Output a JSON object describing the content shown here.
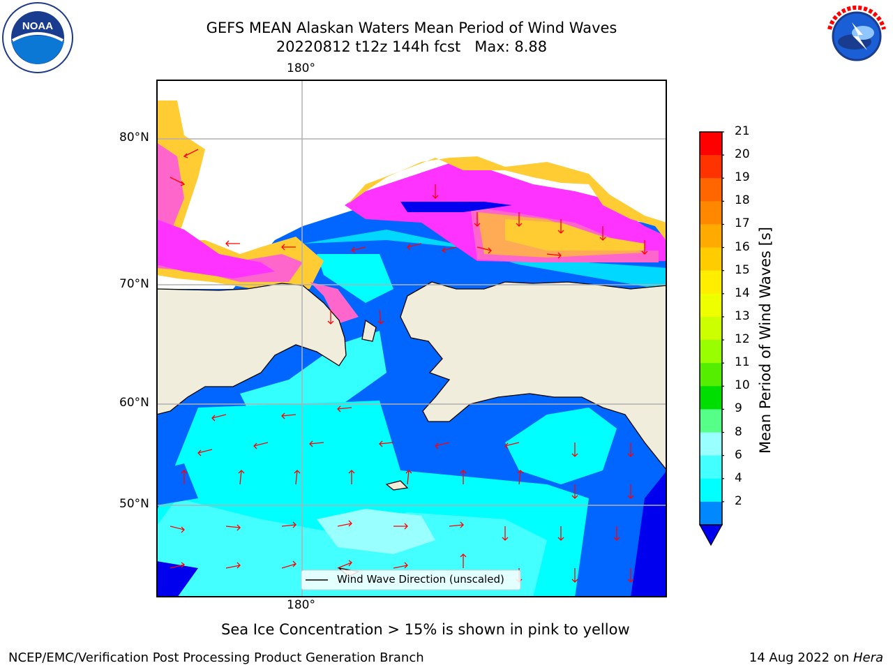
{
  "header": {
    "title_line1": "GEFS MEAN Alaskan Waters Mean Period of Wind Waves",
    "title_line2": "20220812 t12z 144h fcst   Max: 8.88"
  },
  "logos": {
    "noaa_text": "NOAA",
    "noaa_ring": "NATIONAL OCEANIC AND ATMOSPHERIC ADMINISTRATION · U.S. DEPARTMENT OF COMMERCE",
    "nws_ring": "NATIONAL WEATHER SERVICE"
  },
  "map": {
    "lon_label_top": "180°",
    "lon_label_bottom": "180°",
    "lat_labels": [
      "80°N",
      "70°N",
      "60°N",
      "50°N"
    ],
    "legend_label": "Wind Wave Direction (unscaled)",
    "colors": {
      "land": "#f0eddc",
      "arrow": "#ff0000",
      "ice": [
        "#ff33ff",
        "#ff66cc",
        "#ffaa55",
        "#ffcc33",
        "#ffee33"
      ]
    }
  },
  "colorbar": {
    "label": "Mean Period of Wind Waves [s]",
    "ticks": [
      "21",
      "20",
      "19",
      "18",
      "17",
      "16",
      "15",
      "14",
      "13",
      "12",
      "11",
      "10",
      "9",
      "8",
      "6",
      "4",
      "2"
    ],
    "colors": [
      "#ff0000",
      "#ff3300",
      "#ff6600",
      "#ff8800",
      "#ffaa00",
      "#ffcc00",
      "#ffee00",
      "#eeff00",
      "#ccff00",
      "#99ff00",
      "#55ee00",
      "#00dd00",
      "#55ff88",
      "#99ffff",
      "#44ffff",
      "#00ffff",
      "#0088ff"
    ],
    "under_color": "#0000ee"
  },
  "note": "Sea Ice Concentration > 15% is shown in pink to yellow",
  "footer": {
    "left": "NCEP/EMC/Verification Post Processing Product Generation Branch",
    "right_date": "14 Aug 2022 on ",
    "right_machine": "Hera"
  }
}
